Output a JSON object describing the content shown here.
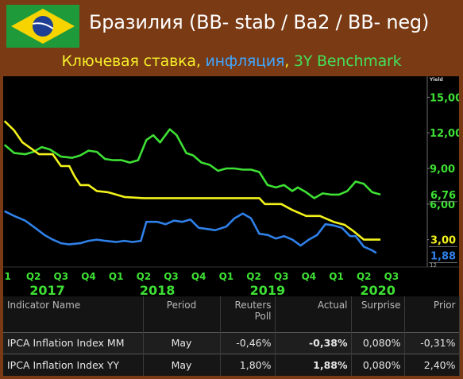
{
  "header": {
    "title": "Бразилия (BB- stab / Ba2 / BB- neg)",
    "subtitle": {
      "rate": "Ключевая ставка",
      "sep": ", ",
      "inflation": "инфляция",
      "sep2": ", ",
      "benchmark": "3Y Benchmark"
    }
  },
  "colors": {
    "background": "#7a3a14",
    "benchmark": "#3ee034",
    "rate": "#f2f21c",
    "inflation": "#2f80e8"
  },
  "chart_data": {
    "type": "line",
    "ylabel": "Yield",
    "ylim": [
      0.7,
      16.5
    ],
    "yticks": [
      "3,00",
      "6,00",
      "9,00",
      "12,00",
      "15,00"
    ],
    "x_start": 0.9,
    "x_end": 16.3,
    "quarter_labels": [
      "1",
      "Q2",
      "Q3",
      "Q4",
      "Q1",
      "Q2",
      "Q3",
      "Q4",
      "Q1",
      "Q2",
      "Q3",
      "Q4",
      "Q1",
      "Q2",
      "Q3"
    ],
    "year_labels": [
      {
        "label": "2017",
        "x": 2.5
      },
      {
        "label": "2018",
        "x": 6.5
      },
      {
        "label": "2019",
        "x": 10.5
      },
      {
        "label": "2020",
        "x": 14.5
      }
    ],
    "axis_note": "12",
    "series": [
      {
        "key": "benchmark",
        "last_label": "6,76",
        "points": [
          [
            0.95,
            11.0
          ],
          [
            1.3,
            10.3
          ],
          [
            1.7,
            10.2
          ],
          [
            2.0,
            10.4
          ],
          [
            2.3,
            10.8
          ],
          [
            2.6,
            10.6
          ],
          [
            3.0,
            10.0
          ],
          [
            3.4,
            9.9
          ],
          [
            3.7,
            10.1
          ],
          [
            4.0,
            10.5
          ],
          [
            4.3,
            10.4
          ],
          [
            4.6,
            9.8
          ],
          [
            4.9,
            9.7
          ],
          [
            5.2,
            9.7
          ],
          [
            5.5,
            9.5
          ],
          [
            5.8,
            9.7
          ],
          [
            6.1,
            11.4
          ],
          [
            6.35,
            11.8
          ],
          [
            6.6,
            11.2
          ],
          [
            6.95,
            12.3
          ],
          [
            7.2,
            11.8
          ],
          [
            7.55,
            10.3
          ],
          [
            7.8,
            10.1
          ],
          [
            8.1,
            9.5
          ],
          [
            8.4,
            9.3
          ],
          [
            8.7,
            8.8
          ],
          [
            9.0,
            9.0
          ],
          [
            9.3,
            9.0
          ],
          [
            9.6,
            8.9
          ],
          [
            9.9,
            8.9
          ],
          [
            10.2,
            8.7
          ],
          [
            10.5,
            7.6
          ],
          [
            10.8,
            7.4
          ],
          [
            11.1,
            7.6
          ],
          [
            11.4,
            7.1
          ],
          [
            11.6,
            7.4
          ],
          [
            11.9,
            7.0
          ],
          [
            12.2,
            6.5
          ],
          [
            12.5,
            6.9
          ],
          [
            12.8,
            6.8
          ],
          [
            13.1,
            6.8
          ],
          [
            13.4,
            7.1
          ],
          [
            13.7,
            7.9
          ],
          [
            14.0,
            7.7
          ],
          [
            14.3,
            7.0
          ],
          [
            14.6,
            6.8
          ]
        ]
      },
      {
        "key": "rate",
        "last_label": "3,00",
        "points": [
          [
            0.95,
            13.0
          ],
          [
            1.3,
            12.2
          ],
          [
            1.6,
            11.2
          ],
          [
            1.9,
            10.7
          ],
          [
            2.2,
            10.2
          ],
          [
            2.7,
            10.2
          ],
          [
            3.0,
            9.2
          ],
          [
            3.3,
            9.2
          ],
          [
            3.5,
            8.3
          ],
          [
            3.7,
            7.6
          ],
          [
            4.0,
            7.6
          ],
          [
            4.3,
            7.1
          ],
          [
            4.7,
            7.0
          ],
          [
            5.0,
            6.8
          ],
          [
            5.3,
            6.6
          ],
          [
            6.0,
            6.5
          ],
          [
            7.0,
            6.5
          ],
          [
            8.0,
            6.5
          ],
          [
            9.0,
            6.5
          ],
          [
            10.2,
            6.5
          ],
          [
            10.4,
            6.0
          ],
          [
            11.0,
            6.0
          ],
          [
            11.4,
            5.5
          ],
          [
            11.9,
            5.0
          ],
          [
            12.4,
            5.0
          ],
          [
            12.9,
            4.5
          ],
          [
            13.3,
            4.25
          ],
          [
            13.6,
            3.75
          ],
          [
            14.0,
            3.0
          ],
          [
            14.6,
            3.0
          ]
        ]
      },
      {
        "key": "inflation",
        "last_label": "1,88",
        "points": [
          [
            0.95,
            5.4
          ],
          [
            1.3,
            5.0
          ],
          [
            1.7,
            4.6
          ],
          [
            2.0,
            4.1
          ],
          [
            2.4,
            3.4
          ],
          [
            2.7,
            3.0
          ],
          [
            3.0,
            2.7
          ],
          [
            3.3,
            2.6
          ],
          [
            3.7,
            2.7
          ],
          [
            4.0,
            2.9
          ],
          [
            4.3,
            3.0
          ],
          [
            4.6,
            2.9
          ],
          [
            5.0,
            2.8
          ],
          [
            5.3,
            2.9
          ],
          [
            5.6,
            2.8
          ],
          [
            5.9,
            2.9
          ],
          [
            6.1,
            4.5
          ],
          [
            6.5,
            4.5
          ],
          [
            6.8,
            4.3
          ],
          [
            7.1,
            4.6
          ],
          [
            7.4,
            4.5
          ],
          [
            7.7,
            4.7
          ],
          [
            8.0,
            4.0
          ],
          [
            8.3,
            3.9
          ],
          [
            8.6,
            3.8
          ],
          [
            9.0,
            4.1
          ],
          [
            9.3,
            4.8
          ],
          [
            9.6,
            5.2
          ],
          [
            9.9,
            4.8
          ],
          [
            10.2,
            3.5
          ],
          [
            10.5,
            3.4
          ],
          [
            10.8,
            3.1
          ],
          [
            11.1,
            3.3
          ],
          [
            11.4,
            3.0
          ],
          [
            11.7,
            2.5
          ],
          [
            12.0,
            3.0
          ],
          [
            12.3,
            3.4
          ],
          [
            12.6,
            4.3
          ],
          [
            12.9,
            4.2
          ],
          [
            13.2,
            4.0
          ],
          [
            13.5,
            3.3
          ],
          [
            13.7,
            3.3
          ],
          [
            14.0,
            2.4
          ],
          [
            14.3,
            2.1
          ],
          [
            14.45,
            1.88
          ]
        ]
      }
    ]
  },
  "table": {
    "headers": {
      "name": "Indicator Name",
      "period": "Period",
      "poll_line1": "Reuters",
      "poll_line2": "Poll",
      "actual": "Actual",
      "surprise": "Surprise",
      "prior": "Prior"
    },
    "rows": [
      {
        "name": "IPCA Inflation Index MM",
        "period": "May",
        "poll": "-0,46%",
        "actual": "-0,38%",
        "surprise": "0,080%",
        "prior": "-0,31%"
      },
      {
        "name": "IPCA Inflation Index YY",
        "period": "May",
        "poll": "1,80%",
        "actual": "1,88%",
        "surprise": "0,080%",
        "prior": "2,40%"
      }
    ]
  }
}
